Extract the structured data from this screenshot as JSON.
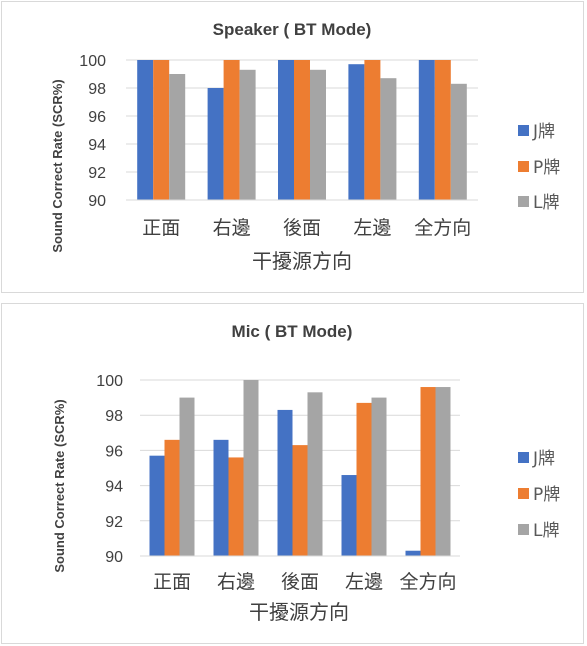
{
  "chart_data": [
    {
      "type": "bar",
      "title": "Speaker ( BT Mode)",
      "xlabel": "干擾源方向",
      "ylabel": "Sound Correct Rate (SCR%)",
      "ylim": [
        90,
        100
      ],
      "yticks": [
        90,
        92,
        94,
        96,
        98,
        100
      ],
      "grid": true,
      "legend_position": "right",
      "categories": [
        "正面",
        "右邊",
        "後面",
        "左邊",
        "全方向"
      ],
      "series": [
        {
          "name": "J牌",
          "color": "#4472c4",
          "values": [
            100,
            98,
            100,
            99.7,
            100
          ]
        },
        {
          "name": "P牌",
          "color": "#ed7d31",
          "values": [
            100,
            100,
            100,
            100,
            100
          ]
        },
        {
          "name": "L牌",
          "color": "#a5a5a5",
          "values": [
            99,
            99.3,
            99.3,
            98.7,
            98.3
          ]
        }
      ]
    },
    {
      "type": "bar",
      "title": "Mic ( BT Mode)",
      "xlabel": "干擾源方向",
      "ylabel": "Sound Correct Rate (SCR%)",
      "ylim": [
        90,
        100
      ],
      "yticks": [
        90,
        92,
        94,
        96,
        98,
        100
      ],
      "grid": true,
      "legend_position": "right",
      "categories": [
        "正面",
        "右邊",
        "後面",
        "左邊",
        "全方向"
      ],
      "series": [
        {
          "name": "J牌",
          "color": "#4472c4",
          "values": [
            95.7,
            96.6,
            98.3,
            94.6,
            90.3
          ]
        },
        {
          "name": "P牌",
          "color": "#ed7d31",
          "values": [
            96.6,
            95.6,
            96.3,
            98.7,
            99.6
          ]
        },
        {
          "name": "L牌",
          "color": "#a5a5a5",
          "values": [
            99,
            100,
            99.3,
            99,
            99.6
          ]
        }
      ]
    }
  ]
}
